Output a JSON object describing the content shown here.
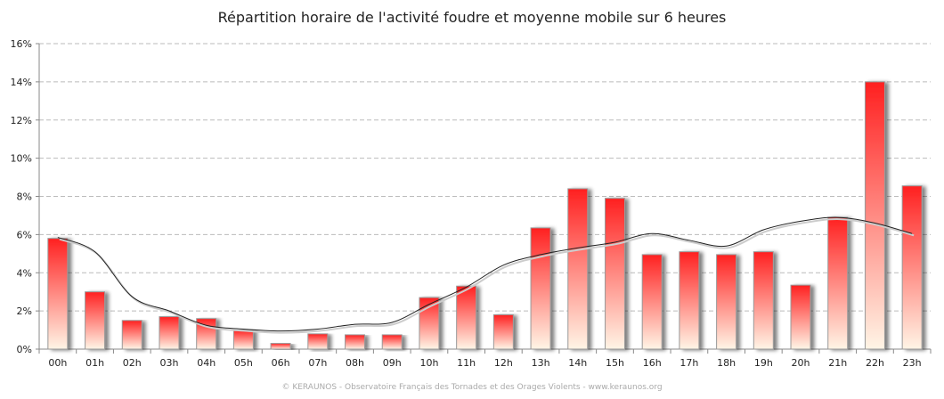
{
  "chart_data": {
    "type": "bar",
    "title": "Répartition horaire de l'activité foudre et moyenne mobile sur 6 heures",
    "xlabel": "",
    "ylabel": "",
    "ylim": [
      0,
      16
    ],
    "yticks": [
      "0%",
      "2%",
      "4%",
      "6%",
      "8%",
      "10%",
      "12%",
      "14%",
      "16%"
    ],
    "grid": true,
    "categories": [
      "00h",
      "01h",
      "02h",
      "03h",
      "04h",
      "05h",
      "06h",
      "07h",
      "08h",
      "09h",
      "10h",
      "11h",
      "12h",
      "13h",
      "14h",
      "15h",
      "16h",
      "17h",
      "18h",
      "19h",
      "20h",
      "21h",
      "22h",
      "23h"
    ],
    "series": [
      {
        "type": "bar",
        "values": [
          5.8,
          3.0,
          1.5,
          1.7,
          1.6,
          1.0,
          0.3,
          0.8,
          0.75,
          0.75,
          2.7,
          3.3,
          1.8,
          6.35,
          8.4,
          7.9,
          4.95,
          5.1,
          4.95,
          5.1,
          3.35,
          6.9,
          14.0,
          8.55
        ],
        "color_top": "#ff2020",
        "color_bottom": "#fff5e6"
      },
      {
        "type": "line",
        "values": [
          5.85,
          5.1,
          2.75,
          2.0,
          1.25,
          1.05,
          0.95,
          1.05,
          1.3,
          1.4,
          2.35,
          3.25,
          4.4,
          4.95,
          5.3,
          5.6,
          6.05,
          5.7,
          5.4,
          6.25,
          6.7,
          6.9,
          6.6,
          6.05
        ],
        "color": "#222222"
      }
    ]
  },
  "footer": "© KERAUNOS - Observatoire Français des Tornades et des Orages Violents - www.keraunos.org"
}
